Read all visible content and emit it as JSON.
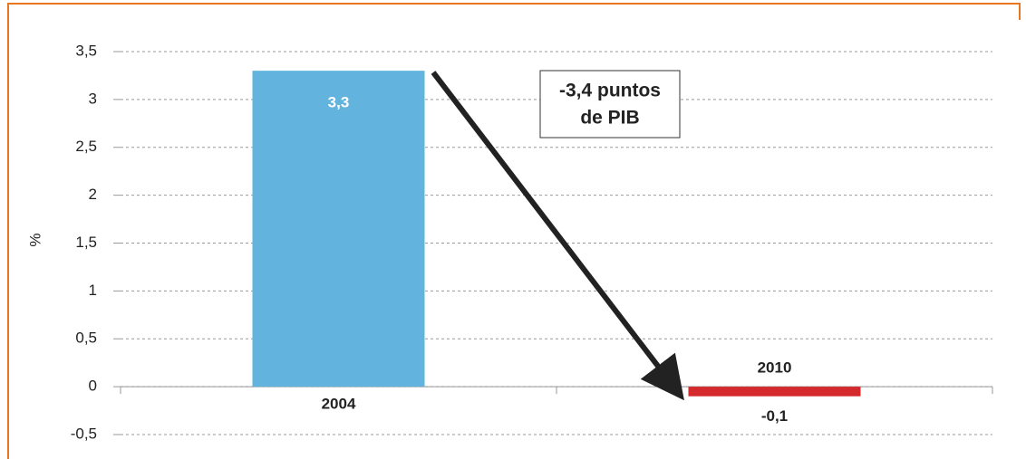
{
  "chart_data": {
    "type": "bar",
    "y_label": "%",
    "categories": [
      "2004",
      "2010"
    ],
    "values": [
      3.3,
      -0.1
    ],
    "value_labels": [
      "3,3",
      "-0,1"
    ],
    "colors": [
      "#62b4de",
      "#d42a2e"
    ],
    "ylim": [
      -0.5,
      3.5
    ],
    "yticks": [
      {
        "value": -0.5,
        "label": "-0,5"
      },
      0,
      {
        "value": 0.5,
        "label": "0,5"
      },
      1,
      {
        "value": 1.5,
        "label": "1,5"
      },
      2,
      {
        "value": 2.5,
        "label": "2,5"
      },
      3,
      {
        "value": 3.5,
        "label": "3,5"
      }
    ],
    "grid": true,
    "annotation": [
      "-3,4 puntos",
      "de PIB"
    ]
  }
}
